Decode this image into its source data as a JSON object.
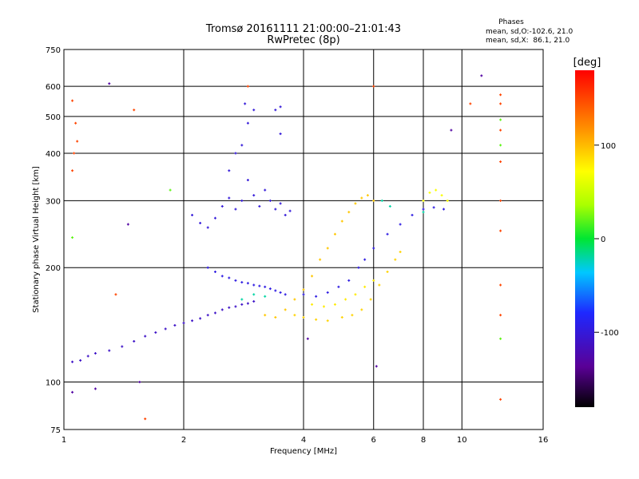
{
  "chart_data": {
    "type": "scatter",
    "title": "Tromsø 20161111 21:00:00–21:01:43",
    "subtitle": "RwPretec (8p)",
    "xlabel": "Frequency [MHz]",
    "ylabel": "Stationary phase Virtual Height [km]",
    "x_scale": "log",
    "y_scale": "log",
    "xlim": [
      1,
      16
    ],
    "ylim": [
      75,
      750
    ],
    "x_ticks": [
      "1",
      "2",
      "4",
      "6",
      "8",
      "10",
      "16"
    ],
    "y_ticks": [
      "75",
      "100",
      "200",
      "300",
      "400",
      "500",
      "600",
      "750"
    ],
    "grid": true,
    "stats": {
      "heading": "Phases",
      "line_o": "mean, sd,O:-102.6, 21.0",
      "line_x": "mean, sd,X:  86.1, 21.0"
    },
    "colorbar": {
      "label": "[deg]",
      "ticks": [
        "100",
        "0",
        "-100"
      ],
      "range": [
        -180,
        180
      ]
    },
    "series": [
      {
        "name": "",
        "phase_deg": -110,
        "points": [
          [
            1.05,
            113
          ],
          [
            1.1,
            114
          ],
          [
            1.15,
            117
          ],
          [
            1.2,
            119
          ],
          [
            1.3,
            121
          ],
          [
            1.4,
            124
          ],
          [
            1.5,
            128
          ],
          [
            1.6,
            132
          ],
          [
            1.7,
            135
          ],
          [
            1.8,
            138
          ],
          [
            1.9,
            141
          ],
          [
            2.0,
            143
          ],
          [
            2.1,
            145
          ],
          [
            2.2,
            147
          ],
          [
            2.3,
            150
          ],
          [
            2.4,
            152
          ],
          [
            2.5,
            155
          ],
          [
            2.6,
            157
          ],
          [
            2.7,
            158
          ],
          [
            2.8,
            160
          ],
          [
            2.9,
            161
          ],
          [
            3.0,
            163
          ]
        ]
      },
      {
        "name": "",
        "phase_deg": -100,
        "points": [
          [
            2.1,
            275
          ],
          [
            2.2,
            262
          ],
          [
            2.3,
            255
          ],
          [
            2.4,
            270
          ],
          [
            2.5,
            290
          ],
          [
            2.6,
            305
          ],
          [
            2.7,
            285
          ],
          [
            2.8,
            300
          ],
          [
            2.9,
            340
          ],
          [
            3.0,
            310
          ],
          [
            3.1,
            290
          ],
          [
            3.2,
            320
          ],
          [
            3.3,
            300
          ],
          [
            3.4,
            285
          ],
          [
            3.5,
            295
          ],
          [
            3.6,
            275
          ],
          [
            3.7,
            282
          ],
          [
            2.6,
            360
          ],
          [
            2.7,
            400
          ],
          [
            2.8,
            420
          ],
          [
            2.9,
            480
          ],
          [
            2.85,
            540
          ],
          [
            3.0,
            520
          ],
          [
            3.4,
            520
          ],
          [
            3.5,
            450
          ],
          [
            3.5,
            530
          ]
        ]
      },
      {
        "name": "",
        "phase_deg": -95,
        "points": [
          [
            2.3,
            200
          ],
          [
            2.4,
            195
          ],
          [
            2.5,
            190
          ],
          [
            2.6,
            188
          ],
          [
            2.7,
            185
          ],
          [
            2.8,
            183
          ],
          [
            2.9,
            182
          ],
          [
            3.0,
            180
          ],
          [
            3.1,
            179
          ],
          [
            3.2,
            178
          ],
          [
            3.3,
            176
          ],
          [
            3.4,
            174
          ],
          [
            3.5,
            172
          ],
          [
            3.6,
            170
          ]
        ]
      },
      {
        "name": "",
        "phase_deg": -95,
        "points": [
          [
            4.0,
            170
          ],
          [
            4.3,
            168
          ],
          [
            4.6,
            172
          ],
          [
            4.9,
            178
          ],
          [
            5.2,
            185
          ],
          [
            5.5,
            200
          ],
          [
            5.7,
            210
          ],
          [
            6.0,
            225
          ],
          [
            6.5,
            245
          ],
          [
            7.0,
            260
          ],
          [
            7.5,
            275
          ],
          [
            8.0,
            285
          ],
          [
            8.5,
            288
          ],
          [
            9.0,
            285
          ]
        ]
      },
      {
        "name": "",
        "phase_deg": 95,
        "points": [
          [
            3.2,
            150
          ],
          [
            3.4,
            148
          ],
          [
            3.6,
            155
          ],
          [
            3.8,
            165
          ],
          [
            4.0,
            175
          ],
          [
            4.2,
            190
          ],
          [
            4.4,
            210
          ],
          [
            4.6,
            225
          ],
          [
            4.8,
            245
          ],
          [
            5.0,
            265
          ],
          [
            5.2,
            280
          ],
          [
            5.4,
            295
          ],
          [
            5.6,
            305
          ],
          [
            5.8,
            310
          ],
          [
            6.0,
            300
          ]
        ]
      },
      {
        "name": "",
        "phase_deg": 90,
        "points": [
          [
            3.8,
            150
          ],
          [
            4.0,
            148
          ],
          [
            4.3,
            146
          ],
          [
            4.6,
            145
          ],
          [
            5.0,
            148
          ],
          [
            5.3,
            150
          ],
          [
            5.6,
            155
          ],
          [
            5.9,
            165
          ],
          [
            6.2,
            180
          ],
          [
            6.5,
            195
          ],
          [
            6.8,
            210
          ],
          [
            7.0,
            220
          ]
        ]
      },
      {
        "name": "",
        "phase_deg": 80,
        "points": [
          [
            4.2,
            160
          ],
          [
            4.5,
            158
          ],
          [
            4.8,
            160
          ],
          [
            5.1,
            165
          ],
          [
            5.4,
            170
          ],
          [
            5.7,
            178
          ],
          [
            6.0,
            185
          ]
        ]
      },
      {
        "name": "",
        "phase_deg": 70,
        "points": [
          [
            8.0,
            300
          ],
          [
            8.3,
            315
          ],
          [
            8.6,
            320
          ],
          [
            8.9,
            310
          ],
          [
            9.2,
            300
          ]
        ]
      },
      {
        "name": "",
        "phase_deg": -20,
        "points": [
          [
            2.8,
            165
          ],
          [
            3.0,
            170
          ],
          [
            3.2,
            168
          ],
          [
            6.3,
            300
          ],
          [
            6.6,
            290
          ],
          [
            8.0,
            280
          ]
        ]
      },
      {
        "name": "",
        "phase_deg": 150,
        "points": [
          [
            1.05,
            550
          ],
          [
            1.07,
            480
          ],
          [
            1.08,
            430
          ],
          [
            1.06,
            400
          ],
          [
            1.05,
            360
          ],
          [
            1.5,
            520
          ],
          [
            2.9,
            600
          ],
          [
            6.0,
            600
          ],
          [
            12.5,
            570
          ],
          [
            12.5,
            540
          ],
          [
            12.5,
            460
          ],
          [
            12.5,
            380
          ],
          [
            12.5,
            300
          ],
          [
            12.5,
            250
          ],
          [
            12.5,
            180
          ],
          [
            12.5,
            150
          ],
          [
            12.5,
            90
          ],
          [
            10.5,
            540
          ],
          [
            1.6,
            80
          ],
          [
            1.35,
            170
          ]
        ]
      },
      {
        "name": "",
        "phase_deg": 20,
        "points": [
          [
            1.05,
            240
          ],
          [
            1.85,
            320
          ],
          [
            12.5,
            490
          ],
          [
            12.5,
            420
          ],
          [
            12.5,
            130
          ]
        ]
      },
      {
        "name": "",
        "phase_deg": -130,
        "points": [
          [
            1.3,
            610
          ],
          [
            1.45,
            260
          ],
          [
            9.4,
            460
          ],
          [
            1.2,
            96
          ],
          [
            1.05,
            94
          ],
          [
            1.55,
            100
          ],
          [
            6.1,
            110
          ],
          [
            4.1,
            130
          ],
          [
            11.2,
            640
          ]
        ]
      }
    ]
  }
}
